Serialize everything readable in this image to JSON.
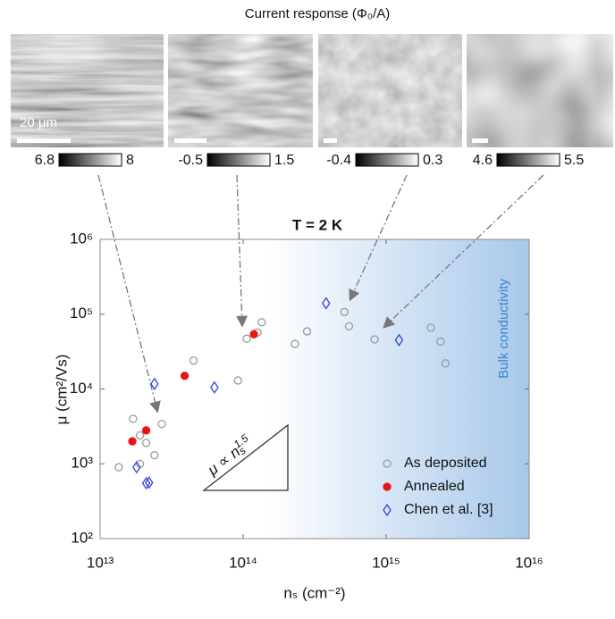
{
  "header": {
    "title": "Current response (Φ₀/A)"
  },
  "panels": [
    {
      "scale_label": "20 μm",
      "cbar_min": 6.8,
      "cbar_max": 8
    },
    {
      "cbar_min": -0.5,
      "cbar_max": 1.5
    },
    {
      "cbar_min": -0.4,
      "cbar_max": 0.3
    },
    {
      "cbar_min": 4.6,
      "cbar_max": 5.5
    }
  ],
  "chart_data": {
    "type": "scatter",
    "title": "T = 2 K",
    "x_label": "nₛ (cm⁻²)",
    "y_label": "μ (cm²/Vs)",
    "xscale": "log",
    "yscale": "log",
    "xlim": [
      10000000000000.0,
      1e+16
    ],
    "ylim": [
      100,
      1000000
    ],
    "xticks": [
      {
        "value": 10000000000000.0,
        "label": "10¹³"
      },
      {
        "value": 100000000000000.0,
        "label": "10¹⁴"
      },
      {
        "value": 1000000000000000.0,
        "label": "10¹⁵"
      },
      {
        "value": 1e+16,
        "label": "10¹⁶"
      }
    ],
    "yticks": [
      {
        "value": 100,
        "label": "10²"
      },
      {
        "value": 1000,
        "label": "10³"
      },
      {
        "value": 10000,
        "label": "10⁴"
      },
      {
        "value": 100000,
        "label": "10⁵"
      },
      {
        "value": 1000000,
        "label": "10⁶"
      }
    ],
    "legend": "lower right",
    "region_label": "Bulk conductivity",
    "annotation": {
      "text": "μ ∝ n",
      "sub": "s",
      "sup": "1.5"
    },
    "series": [
      {
        "name": "As deposited",
        "color": "#9a9a9a",
        "marker": "circle-open",
        "x": [
          13500000000000.0,
          17000000000000.0,
          19000000000000.0,
          21000000000000.0,
          19000000000000.0,
          24000000000000.0,
          27000000000000.0,
          45000000000000.0,
          92000000000000.0,
          106000000000000.0,
          126000000000000.0,
          135000000000000.0,
          230000000000000.0,
          280000000000000.0,
          510000000000000.0,
          550000000000000.0,
          830000000000000.0,
          2050000000000000.0,
          2400000000000000.0,
          2600000000000000.0
        ],
        "values": [
          900,
          4000,
          2400,
          1900,
          1000,
          1300,
          3400,
          24000,
          13000,
          47000,
          57000,
          78000,
          40000,
          59000,
          107000,
          69000,
          46000,
          66000,
          43000,
          22000
        ]
      },
      {
        "name": "Annealed",
        "color": "#e8141b",
        "marker": "circle-filled",
        "x": [
          16800000000000.0,
          21000000000000.0,
          39000000000000.0,
          119000000000000.0
        ],
        "values": [
          2000,
          2800,
          15000,
          54000
        ]
      },
      {
        "name": "Chen et al. [3]",
        "color": "#3344dd",
        "marker": "diamond-open",
        "x": [
          24000000000000.0,
          18000000000000.0,
          22000000000000.0,
          21000000000000.0,
          63000000000000.0,
          380000000000000.0,
          1230000000000000.0
        ],
        "values": [
          11700,
          900,
          560,
          550,
          10500,
          140000,
          45000
        ]
      }
    ]
  }
}
